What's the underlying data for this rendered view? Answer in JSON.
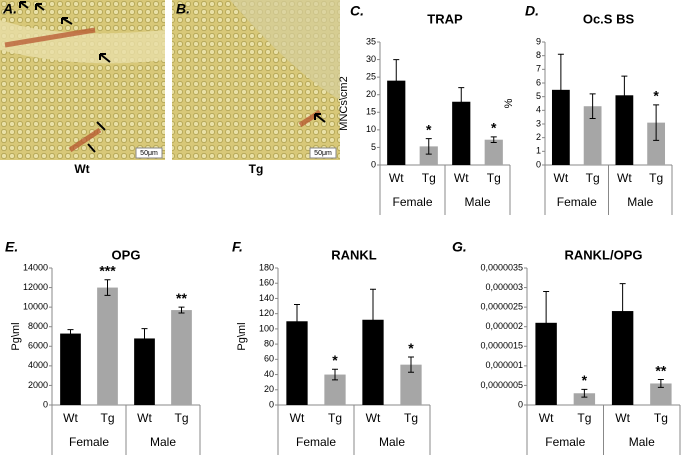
{
  "images": [
    {
      "panel": "A.",
      "label": "Wt",
      "scale": "50μm"
    },
    {
      "panel": "B.",
      "label": "Tg",
      "scale": "50μm"
    }
  ],
  "chart_data": [
    {
      "type": "bar",
      "panel": "C.",
      "title": "TRAP",
      "ylabel": "MNCs\\cm2",
      "categories": [
        "Wt",
        "Tg",
        "Wt",
        "Tg"
      ],
      "groups": [
        "Female",
        "Male"
      ],
      "values": [
        24,
        5.3,
        18,
        7.2
      ],
      "errors": [
        6,
        2.2,
        4,
        0.8
      ],
      "colors": [
        "#000000",
        "#a6a6a6",
        "#000000",
        "#a6a6a6"
      ],
      "annotations": [
        null,
        "*",
        null,
        "*"
      ],
      "ylim": [
        0,
        35
      ],
      "yticks": [
        0,
        5,
        10,
        15,
        20,
        25,
        30,
        35
      ]
    },
    {
      "type": "bar",
      "panel": "D.",
      "title": "Oc.S BS",
      "ylabel": "%",
      "categories": [
        "Wt",
        "Tg",
        "Wt",
        "Tg"
      ],
      "groups": [
        "Female",
        "Male"
      ],
      "values": [
        5.5,
        4.3,
        5.1,
        3.1
      ],
      "errors": [
        2.6,
        0.9,
        1.4,
        1.3
      ],
      "colors": [
        "#000000",
        "#a6a6a6",
        "#000000",
        "#a6a6a6"
      ],
      "annotations": [
        null,
        null,
        null,
        "*"
      ],
      "ylim": [
        0,
        9
      ],
      "yticks": [
        0,
        1,
        2,
        3,
        4,
        5,
        6,
        7,
        8,
        9
      ]
    },
    {
      "type": "bar",
      "panel": "E.",
      "title": "OPG",
      "ylabel": "Pg\\ml",
      "categories": [
        "Wt",
        "Tg",
        "Wt",
        "Tg"
      ],
      "groups": [
        "Female",
        "Male"
      ],
      "values": [
        7300,
        12000,
        6800,
        9700
      ],
      "errors": [
        400,
        800,
        1000,
        300
      ],
      "colors": [
        "#000000",
        "#a6a6a6",
        "#000000",
        "#a6a6a6"
      ],
      "annotations": [
        null,
        "***",
        null,
        "**"
      ],
      "ylim": [
        0,
        14000
      ],
      "yticks": [
        0,
        2000,
        4000,
        6000,
        8000,
        10000,
        12000,
        14000
      ]
    },
    {
      "type": "bar",
      "panel": "F.",
      "title": "RANKL",
      "ylabel": "Pg\\ml",
      "categories": [
        "Wt",
        "Tg",
        "Wt",
        "Tg"
      ],
      "groups": [
        "Female",
        "Male"
      ],
      "values": [
        110,
        40,
        112,
        53
      ],
      "errors": [
        22,
        7,
        40,
        10
      ],
      "colors": [
        "#000000",
        "#a6a6a6",
        "#000000",
        "#a6a6a6"
      ],
      "annotations": [
        null,
        "*",
        null,
        "*"
      ],
      "ylim": [
        0,
        180
      ],
      "yticks": [
        0,
        20,
        40,
        60,
        80,
        100,
        120,
        140,
        160,
        180
      ]
    },
    {
      "type": "bar",
      "panel": "G.",
      "title": "RANKL/OPG",
      "categories": [
        "Wt",
        "Tg",
        "Wt",
        "Tg"
      ],
      "groups": [
        "Female",
        "Male"
      ],
      "values": [
        2.1e-06,
        3e-07,
        2.4e-06,
        5.5e-07
      ],
      "errors": [
        8e-07,
        1e-07,
        7e-07,
        1e-07
      ],
      "colors": [
        "#000000",
        "#a6a6a6",
        "#000000",
        "#a6a6a6"
      ],
      "annotations": [
        null,
        "*",
        null,
        "**"
      ],
      "ylim": [
        0,
        3.5e-06
      ],
      "yticks": [
        0,
        {
          "value": 5e-07,
          "label": "0,0000005"
        },
        {
          "value": 1e-06,
          "label": "0,000001"
        },
        {
          "value": 1.5e-06,
          "label": "0,0000015"
        },
        {
          "value": 2e-06,
          "label": "0,000002"
        },
        {
          "value": 2.5e-06,
          "label": "0,0000025"
        },
        {
          "value": 3e-06,
          "label": "0,000003"
        },
        {
          "value": 3.5e-06,
          "label": "0,0000035"
        }
      ]
    }
  ]
}
